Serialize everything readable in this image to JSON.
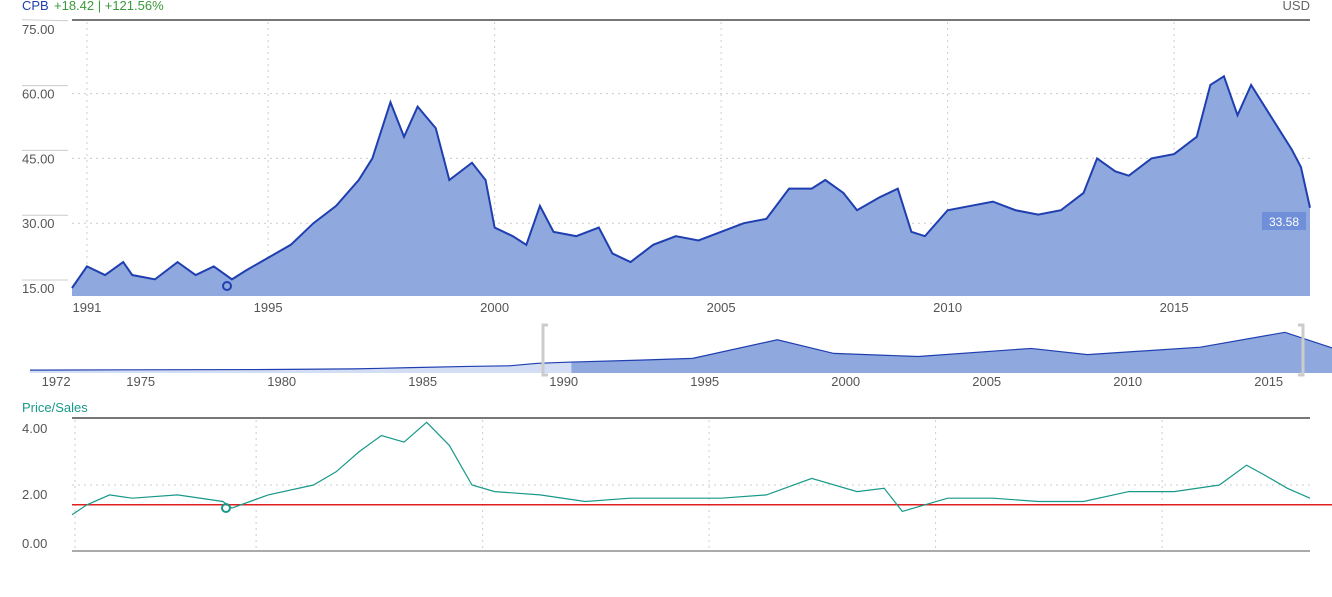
{
  "header": {
    "ticker": "CPB",
    "change": "+18.42 | +121.56%",
    "currency": "USD"
  },
  "colors": {
    "line": "#1f3fb0",
    "fill": "#8fa8de",
    "ratio": "#19998a",
    "ref": "#e02020",
    "up": "#3a9a3a"
  },
  "chart_data": [
    {
      "type": "area",
      "title": "CPB",
      "ylim": [
        15,
        75
      ],
      "yticks": [
        "75.00",
        "60.00",
        "45.00",
        "30.00",
        "15.00"
      ],
      "ytick_values": [
        75,
        60,
        45,
        30,
        15
      ],
      "xticks": [
        "1991",
        "1995",
        "2000",
        "2005",
        "2010",
        "2015"
      ],
      "xtick_values": [
        1991,
        1995,
        2000,
        2005,
        2010,
        2015
      ],
      "xlim": [
        1990.67,
        2018
      ],
      "last_label": "33.58",
      "x": [
        1990.67,
        1991,
        1991.4,
        1991.8,
        1992,
        1992.5,
        1993,
        1993.4,
        1993.8,
        1994.2,
        1994.5,
        1995,
        1995.5,
        1996,
        1996.5,
        1997,
        1997.3,
        1997.7,
        1998,
        1998.3,
        1998.7,
        1999,
        1999.5,
        1999.8,
        2000,
        2000.4,
        2000.7,
        2001,
        2001.3,
        2001.8,
        2002.3,
        2002.6,
        2003,
        2003.5,
        2004,
        2004.5,
        2005,
        2005.5,
        2006,
        2006.5,
        2007,
        2007.3,
        2007.7,
        2008,
        2008.5,
        2008.9,
        2009.2,
        2009.5,
        2010,
        2010.5,
        2011,
        2011.5,
        2012,
        2012.5,
        2013,
        2013.3,
        2013.7,
        2014,
        2014.5,
        2015,
        2015.5,
        2015.8,
        2016.1,
        2016.4,
        2016.7,
        2017,
        2017.3,
        2017.6,
        2017.8,
        2018
      ],
      "values": [
        15,
        20,
        18,
        21,
        18,
        17,
        21,
        18,
        20,
        17,
        19,
        22,
        25,
        30,
        34,
        40,
        45,
        58,
        50,
        57,
        52,
        40,
        44,
        40,
        29,
        27,
        25,
        34,
        28,
        27,
        29,
        23,
        21,
        25,
        27,
        26,
        28,
        30,
        31,
        38,
        38,
        40,
        37,
        33,
        36,
        38,
        28,
        27,
        33,
        34,
        35,
        33,
        32,
        33,
        37,
        45,
        42,
        41,
        45,
        46,
        50,
        62,
        64,
        55,
        62,
        57,
        52,
        47,
        43,
        33.58
      ]
    },
    {
      "type": "area",
      "title": "navigator",
      "xticks": [
        "1972",
        "1975",
        "1980",
        "1985",
        "1990",
        "1995",
        "2000",
        "2005",
        "2010",
        "2015"
      ],
      "xtick_values": [
        1972,
        1975,
        1980,
        1985,
        1990,
        1995,
        2000,
        2005,
        2010,
        2015
      ],
      "x": [
        1971.5,
        1975,
        1980,
        1983,
        1985,
        1987,
        1988.5,
        1989.5,
        1990.7,
        1993,
        1995,
        1998,
        2000,
        2003,
        2007,
        2009,
        2013,
        2016,
        2018
      ],
      "values": [
        3,
        3.5,
        4,
        5,
        7,
        9,
        10,
        14,
        16,
        19,
        22,
        52,
        30,
        25,
        38,
        28,
        40,
        64,
        34
      ]
    },
    {
      "type": "line",
      "title": "Price/Sales",
      "ylim": [
        0,
        4
      ],
      "yticks": [
        "4.00",
        "2.00",
        "0.00"
      ],
      "ytick_values": [
        4,
        2,
        0
      ],
      "reference_line": 1.4,
      "x": [
        1990.67,
        1991,
        1991.5,
        1992,
        1993,
        1994,
        1994.2,
        1995,
        1996,
        1996.5,
        1997,
        1997.5,
        1998,
        1998.5,
        1999,
        1999.5,
        2000,
        2001,
        2002,
        2003,
        2004,
        2005,
        2006,
        2007,
        2008,
        2008.6,
        2009,
        2010,
        2011,
        2012,
        2013,
        2014,
        2015,
        2016,
        2016.6,
        2017,
        2017.5,
        2018
      ],
      "values": [
        1.1,
        1.4,
        1.7,
        1.6,
        1.7,
        1.5,
        1.3,
        1.7,
        2.0,
        2.4,
        3.0,
        3.5,
        3.3,
        3.9,
        3.2,
        2.0,
        1.8,
        1.7,
        1.5,
        1.6,
        1.6,
        1.6,
        1.7,
        2.2,
        1.8,
        1.9,
        1.2,
        1.6,
        1.6,
        1.5,
        1.5,
        1.8,
        1.8,
        2.0,
        2.6,
        2.3,
        1.9,
        1.6
      ]
    }
  ]
}
